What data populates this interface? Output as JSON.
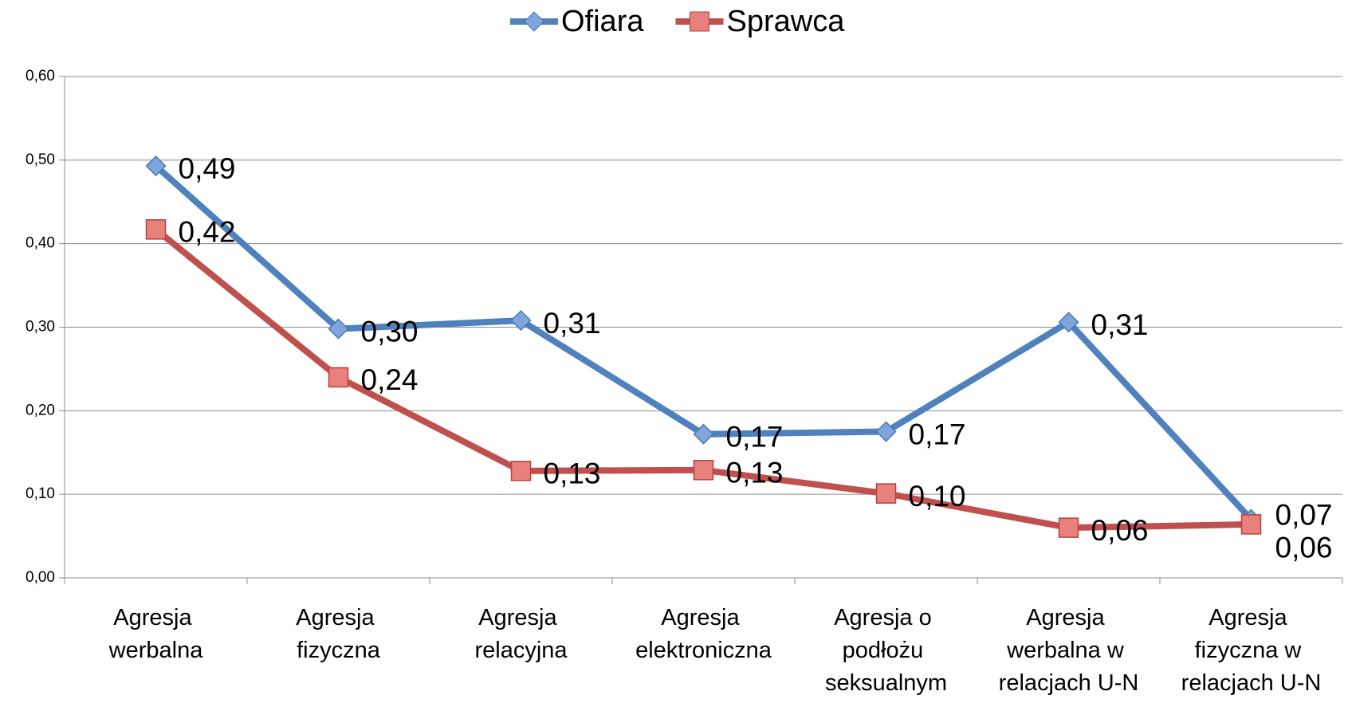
{
  "chart_data": {
    "type": "line",
    "categories": [
      "Agresja werbalna",
      "Agresja fizyczna",
      "Agresja relacyjna",
      "Agresja elektroniczna",
      "Agresja o podłożu seksualnym",
      "Agresja werbalna w relacjach U-N",
      "Agresja fizyczna w relacjach U-N"
    ],
    "series": [
      {
        "name": "Ofiara",
        "color": "#4f81bd",
        "marker": "diamond",
        "values": [
          0.493,
          0.298,
          0.308,
          0.172,
          0.175,
          0.306,
          0.07
        ],
        "value_labels": [
          "0,49",
          "0,30",
          "0,31",
          "0,17",
          "0,17",
          "0,31",
          "0,07"
        ]
      },
      {
        "name": "Sprawca",
        "color": "#c0504d",
        "marker": "square",
        "values": [
          0.417,
          0.24,
          0.128,
          0.129,
          0.101,
          0.06,
          0.064
        ],
        "value_labels": [
          "0,42",
          "0,24",
          "0,13",
          "0,13",
          "0,10",
          "0,06",
          "0,06"
        ]
      }
    ],
    "ylim": [
      0,
      0.6
    ],
    "yticks": [
      {
        "value": 0,
        "label": "0,00"
      },
      {
        "value": 0.1,
        "label": "0,10"
      },
      {
        "value": 0.2,
        "label": "0,20"
      },
      {
        "value": 0.3,
        "label": "0,30"
      },
      {
        "value": 0.4,
        "label": "0,40"
      },
      {
        "value": 0.5,
        "label": "0,50"
      },
      {
        "value": 0.6,
        "label": "0,60"
      }
    ],
    "grid": true,
    "legend": "top"
  }
}
